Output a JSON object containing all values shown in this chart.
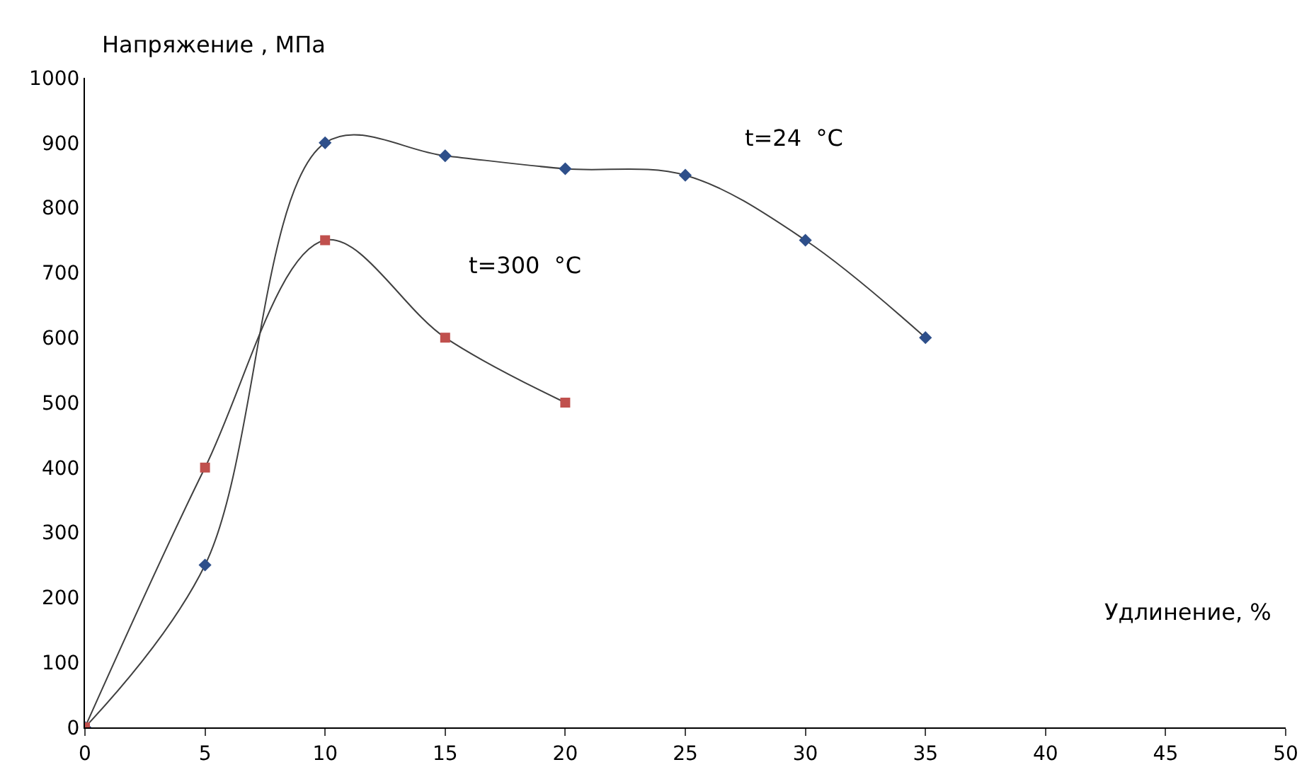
{
  "chart_data": {
    "type": "line",
    "xlabel": "Удлинение, %",
    "ylabel": "Напряжение , МПа",
    "xlim": [
      0,
      50
    ],
    "xticks": [
      0,
      5,
      10,
      15,
      20,
      25,
      30,
      35,
      40,
      45,
      50
    ],
    "ylim": [
      0,
      1000
    ],
    "yticks": [
      0,
      100,
      200,
      300,
      400,
      500,
      600,
      700,
      800,
      900,
      1000
    ],
    "grid": false,
    "legend": false,
    "series": [
      {
        "name": "t=24  °C",
        "color": "#2e4f8a",
        "marker": "diamond",
        "x": [
          0,
          5,
          10,
          15,
          20,
          25,
          30,
          35
        ],
        "values": [
          0,
          250,
          900,
          880,
          860,
          850,
          750,
          600
        ]
      },
      {
        "name": "t=300  °C",
        "color": "#c0504d",
        "marker": "square",
        "x": [
          0,
          5,
          10,
          15,
          20
        ],
        "values": [
          0,
          400,
          750,
          600,
          500
        ]
      }
    ]
  }
}
